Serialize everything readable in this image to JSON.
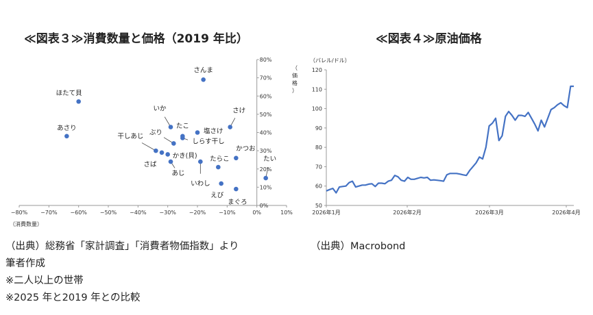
{
  "chart_data": [
    {
      "type": "scatter",
      "title": "≪図表３≫消費数量と価格（2019 年比）",
      "xlabel": "（消費数量）",
      "ylabel": "（価格）",
      "xlim": [
        -80,
        10
      ],
      "ylim": [
        0,
        80
      ],
      "x_ticks": [
        "−80%",
        "−70%",
        "−60%",
        "−50%",
        "−40%",
        "−30%",
        "−20%",
        "−10%",
        "0%",
        "10%"
      ],
      "y_ticks": [
        "0%",
        "10%",
        "20%",
        "30%",
        "40%",
        "50%",
        "60%",
        "70%",
        "80%"
      ],
      "points": [
        {
          "label": "さんま",
          "x": -18,
          "y": 69
        },
        {
          "label": "ほたて貝",
          "x": -60,
          "y": 57
        },
        {
          "label": "あさり",
          "x": -64,
          "y": 38
        },
        {
          "label": "いか",
          "x": -29,
          "y": 43
        },
        {
          "label": "さけ",
          "x": -9,
          "y": 43
        },
        {
          "label": "たこ",
          "x": -25,
          "y": 38
        },
        {
          "label": "塩さけ",
          "x": -20,
          "y": 40
        },
        {
          "label": "ぶり",
          "x": -28,
          "y": 34
        },
        {
          "label": "しらす干し",
          "x": -25,
          "y": 37
        },
        {
          "label": "干しあじ",
          "x": -34,
          "y": 30
        },
        {
          "label": "かつお",
          "x": -7,
          "y": 26
        },
        {
          "label": "さば",
          "x": -32,
          "y": 29
        },
        {
          "label": "かき(貝)",
          "x": -30,
          "y": 28
        },
        {
          "label": "あじ",
          "x": -29,
          "y": 24
        },
        {
          "label": "いわし",
          "x": -19,
          "y": 24
        },
        {
          "label": "たらこ",
          "x": -13,
          "y": 21
        },
        {
          "label": "たい",
          "x": 3,
          "y": 15
        },
        {
          "label": "えび",
          "x": -12,
          "y": 12
        },
        {
          "label": "まぐろ",
          "x": -7,
          "y": 9
        }
      ]
    },
    {
      "type": "line",
      "title": "≪図表４≫原油価格",
      "ylabel": "（バレル/ドル）",
      "ylim": [
        50,
        120
      ],
      "y_ticks": [
        "50",
        "60",
        "70",
        "80",
        "90",
        "100",
        "110",
        "120"
      ],
      "x_ticks": [
        "2026年1月",
        "2026年2月",
        "2026年3月",
        "2026年4月"
      ],
      "series": [
        {
          "values": [
            57.5,
            58.2,
            58.8,
            56.5,
            59.5,
            59.8,
            60,
            61.8,
            62.5,
            59.5,
            60,
            60.5,
            60.5,
            61,
            61.2,
            59.8,
            61.5,
            61.5,
            61.2,
            62.5,
            63,
            65.5,
            64.8,
            63,
            62.5,
            64.5,
            63.5,
            63.5,
            64,
            64.5,
            64.2,
            64.5,
            63,
            63.2,
            63,
            62.8,
            62.5,
            65.8,
            66.5,
            66.5,
            66.5,
            66.2,
            65.8,
            65.5,
            68,
            70,
            72,
            75,
            74,
            80,
            91,
            92.5,
            95,
            83.5,
            86,
            96,
            98.5,
            96.5,
            94,
            96.5,
            96.5,
            96,
            98,
            95,
            92,
            88.5,
            94,
            90.5,
            95,
            99.5,
            100.5,
            102,
            103,
            101.5,
            100.5,
            111.5,
            111.5
          ]
        }
      ]
    }
  ],
  "sources": {
    "fig3": [
      "（出典）総務省「家計調査」「消費者物価指数」より",
      "筆者作成",
      "※二人以上の世帯",
      "※2025 年と2019 年との比較"
    ],
    "fig4": [
      "（出典）Macrobond"
    ]
  },
  "colors": {
    "marker": "#4472c4",
    "line": "#4472c4",
    "axis": "#9a9a9a"
  }
}
